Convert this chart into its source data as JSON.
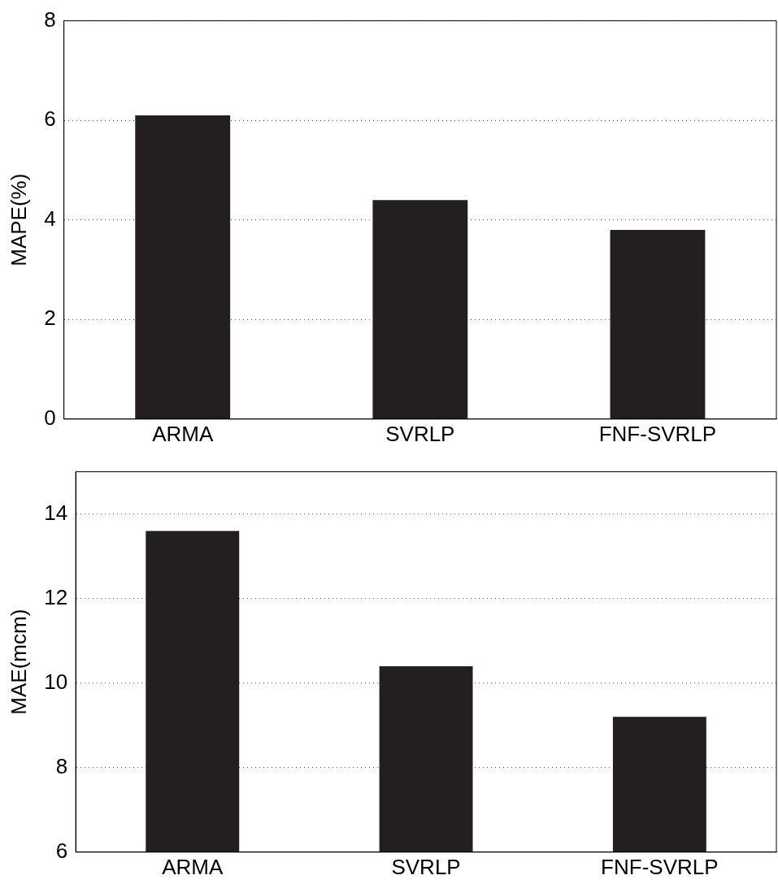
{
  "chart_data": [
    {
      "type": "bar",
      "categories": [
        "ARMA",
        "SVRLP",
        "FNF-SVRLP"
      ],
      "values": [
        6.1,
        4.4,
        3.8
      ],
      "color": "#231f20",
      "ylabel": "MAPE(%)",
      "ylim": [
        0,
        8
      ],
      "yticks": [
        0,
        2,
        4,
        6,
        8
      ],
      "grid": "y"
    },
    {
      "type": "bar",
      "categories": [
        "ARMA",
        "SVRLP",
        "FNF-SVRLP"
      ],
      "values": [
        13.6,
        10.4,
        9.2
      ],
      "color": "#231f20",
      "ylabel": "MAE(mcm)",
      "ylim": [
        6,
        15
      ],
      "yticks": [
        6,
        8,
        10,
        12,
        14
      ],
      "grid": "y"
    }
  ]
}
